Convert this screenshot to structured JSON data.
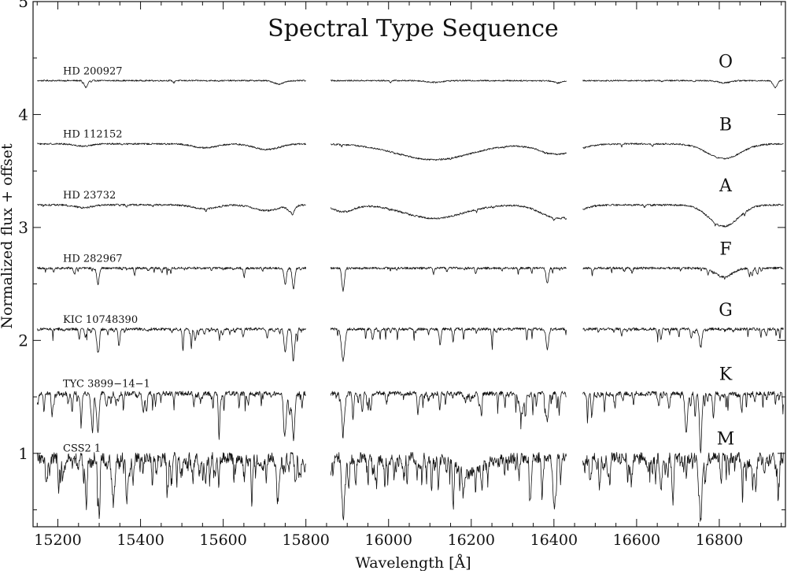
{
  "chart_data": {
    "type": "line",
    "title": "Spectral Type Sequence",
    "xlabel": "Wavelength [Å]",
    "ylabel": "Normalized flux + offset",
    "xlim": [
      15140,
      16960
    ],
    "ylim": [
      0.35,
      5.0
    ],
    "x_ticks": [
      15200,
      15400,
      15600,
      15800,
      16000,
      16200,
      16400,
      16600,
      16800
    ],
    "y_ticks": [
      1,
      2,
      3,
      4,
      5
    ],
    "grid": false,
    "legend": "none",
    "line_color": "#111111",
    "segments": [
      [
        15150,
        15800
      ],
      [
        15860,
        16430
      ],
      [
        16470,
        16955
      ]
    ],
    "series": [
      {
        "name": "HD 200927",
        "type_label": "O",
        "offset": 4.3,
        "noise": 0.006,
        "dense_lines": 10,
        "line_depth": 0.02,
        "features": [
          {
            "center": 15268,
            "width": 4,
            "depth": 0.06
          },
          {
            "center": 15735,
            "width": 12,
            "depth": 0.03
          },
          {
            "center": 16110,
            "width": 18,
            "depth": 0.015
          },
          {
            "center": 16410,
            "width": 10,
            "depth": 0.02
          },
          {
            "center": 16811,
            "width": 14,
            "depth": 0.02
          },
          {
            "center": 16935,
            "width": 5,
            "depth": 0.06
          }
        ]
      },
      {
        "name": "HD 112152",
        "type_label": "B",
        "offset": 3.74,
        "noise": 0.007,
        "dense_lines": 12,
        "line_depth": 0.02,
        "features": [
          {
            "center": 15262,
            "width": 20,
            "depth": 0.02
          },
          {
            "center": 15556,
            "width": 28,
            "depth": 0.035
          },
          {
            "center": 15705,
            "width": 30,
            "depth": 0.05
          },
          {
            "center": 16110,
            "width": 90,
            "depth": 0.14
          },
          {
            "center": 16410,
            "width": 45,
            "depth": 0.09
          },
          {
            "center": 16811,
            "width": 40,
            "depth": 0.13
          }
        ]
      },
      {
        "name": "HD 23732",
        "type_label": "A",
        "offset": 3.2,
        "noise": 0.008,
        "dense_lines": 18,
        "line_depth": 0.025,
        "features": [
          {
            "center": 15262,
            "width": 20,
            "depth": 0.025
          },
          {
            "center": 15556,
            "width": 28,
            "depth": 0.035
          },
          {
            "center": 15705,
            "width": 30,
            "depth": 0.05
          },
          {
            "center": 15765,
            "width": 8,
            "depth": 0.06
          },
          {
            "center": 15890,
            "width": 25,
            "depth": 0.06
          },
          {
            "center": 16110,
            "width": 70,
            "depth": 0.12
          },
          {
            "center": 16410,
            "width": 40,
            "depth": 0.12
          },
          {
            "center": 16811,
            "width": 35,
            "depth": 0.19
          }
        ]
      },
      {
        "name": "HD 282967",
        "type_label": "F",
        "offset": 2.64,
        "noise": 0.01,
        "dense_lines": 60,
        "line_depth": 0.06,
        "features": [
          {
            "center": 15297,
            "width": 3,
            "depth": 0.14
          },
          {
            "center": 15750,
            "width": 3,
            "depth": 0.14
          },
          {
            "center": 15770,
            "width": 3,
            "depth": 0.18
          },
          {
            "center": 15890,
            "width": 3,
            "depth": 0.2
          },
          {
            "center": 16384,
            "width": 3,
            "depth": 0.14
          },
          {
            "center": 16811,
            "width": 20,
            "depth": 0.08
          }
        ]
      },
      {
        "name": "KIC 10748390",
        "type_label": "G",
        "offset": 2.1,
        "noise": 0.012,
        "dense_lines": 95,
        "line_depth": 0.1,
        "features": [
          {
            "center": 15297,
            "width": 3,
            "depth": 0.2
          },
          {
            "center": 15750,
            "width": 3,
            "depth": 0.2
          },
          {
            "center": 15770,
            "width": 3,
            "depth": 0.26
          },
          {
            "center": 15890,
            "width": 4,
            "depth": 0.28
          },
          {
            "center": 16384,
            "width": 3,
            "depth": 0.18
          },
          {
            "center": 16755,
            "width": 3,
            "depth": 0.16
          }
        ]
      },
      {
        "name": "TYC 3899−14−1",
        "type_label": "K",
        "offset": 1.53,
        "noise": 0.02,
        "dense_lines": 190,
        "line_depth": 0.16,
        "features": [
          {
            "center": 15297,
            "width": 3,
            "depth": 0.3
          },
          {
            "center": 15750,
            "width": 3,
            "depth": 0.32
          },
          {
            "center": 15770,
            "width": 3,
            "depth": 0.4
          },
          {
            "center": 15890,
            "width": 4,
            "depth": 0.28
          },
          {
            "center": 16384,
            "width": 3,
            "depth": 0.24
          },
          {
            "center": 16720,
            "width": 3,
            "depth": 0.35
          },
          {
            "center": 16755,
            "width": 3,
            "depth": 0.42
          }
        ]
      },
      {
        "name": "CSS2 1",
        "type_label": "M",
        "offset": 0.96,
        "noise": 0.05,
        "dense_lines": 300,
        "line_depth": 0.2,
        "features": [
          {
            "center": 15335,
            "width": 3,
            "depth": 0.35
          },
          {
            "center": 15890,
            "width": 3,
            "depth": 0.45
          },
          {
            "center": 16200,
            "width": 30,
            "depth": 0.12
          },
          {
            "center": 16400,
            "width": 3,
            "depth": 0.35
          },
          {
            "center": 16755,
            "width": 3,
            "depth": 0.5
          }
        ]
      }
    ]
  }
}
